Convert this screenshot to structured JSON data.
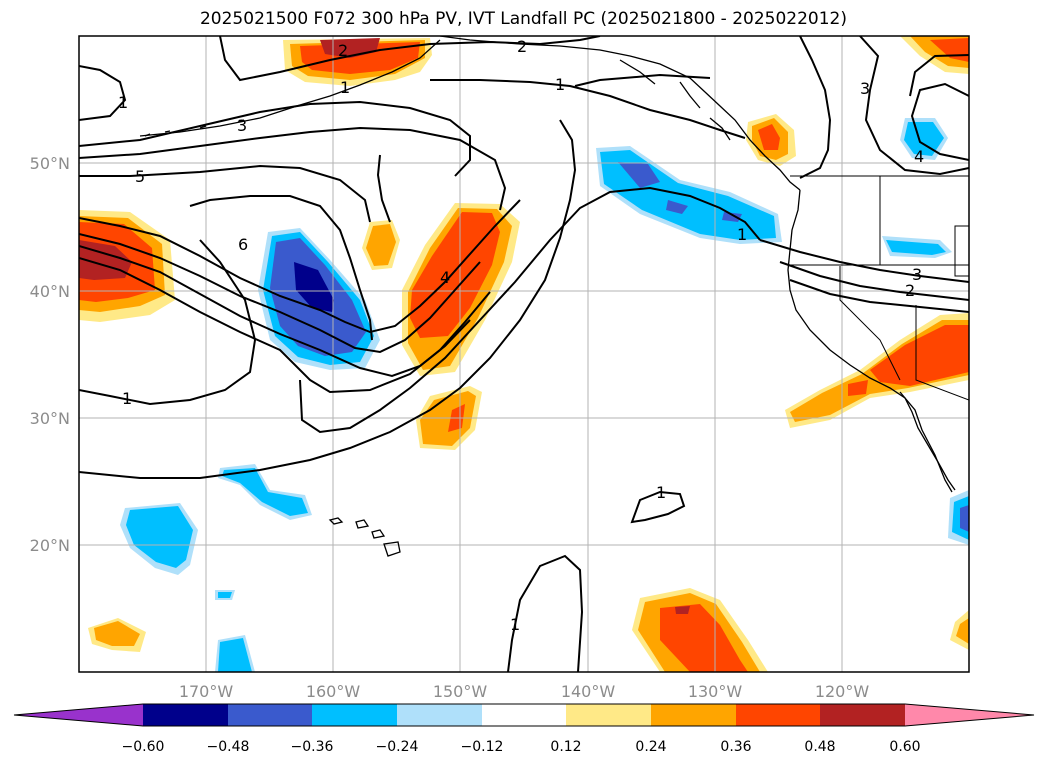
{
  "title": "2025021500 F072 300 hPa PV, IVT Landfall PC (2025021800 - 2025022012)",
  "map": {
    "lon_labels": [
      "170°W",
      "160°W",
      "150°W",
      "140°W",
      "130°W",
      "120°W"
    ],
    "lat_labels": [
      "50°N",
      "40°N",
      "30°N",
      "20°N"
    ],
    "lon_range": [
      -180,
      -110
    ],
    "lat_range": [
      10,
      60
    ],
    "gridlines": true
  },
  "contour_labels": [
    "1",
    "2",
    "2",
    "1",
    "1",
    "1",
    "3",
    "5",
    "6",
    "4",
    "1",
    "3",
    "4",
    "1",
    "3",
    "2",
    "1"
  ],
  "colorbar": {
    "orientation": "horizontal",
    "extend": "both",
    "tick_labels": [
      "−0.60",
      "−0.48",
      "−0.36",
      "−0.24",
      "−0.12",
      "0.12",
      "0.24",
      "0.36",
      "0.48",
      "0.60"
    ],
    "colors": [
      "#9932cc",
      "#00008b",
      "#3a5acd",
      "#00bfff",
      "#afe0fa",
      "#ffffff",
      "#ffe987",
      "#ffa500",
      "#ff4500",
      "#b22222",
      "#ff88aa"
    ]
  }
}
